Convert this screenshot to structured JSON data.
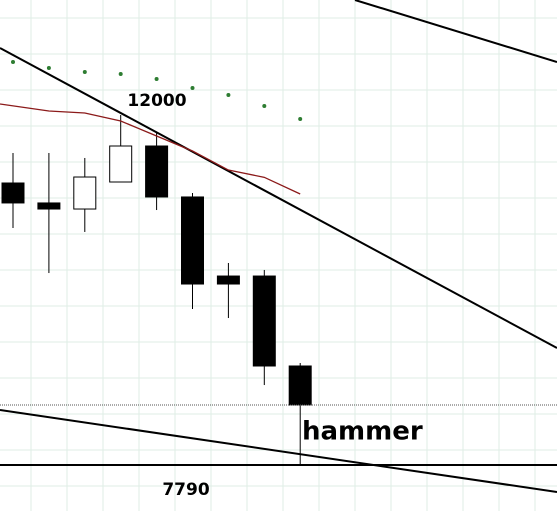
{
  "chart_data": {
    "type": "candlestick",
    "categories": [
      null,
      null,
      null,
      null,
      null,
      null,
      null,
      null,
      null
    ],
    "open": [
      11182,
      10942,
      10869,
      11194,
      11627,
      11014,
      10063,
      10063,
      8981
    ],
    "close": [
      10942,
      10869,
      11254,
      11627,
      11014,
      9967,
      9967,
      8981,
      8512
    ],
    "high": [
      11543,
      11543,
      11483,
      12000,
      11783,
      11062,
      10220,
      10136,
      9017
    ],
    "low": [
      10641,
      10099,
      10593,
      11194,
      10857,
      9666,
      9558,
      8752,
      7790
    ],
    "up_color": "#ffffff",
    "down_color": "#000000",
    "moving_average": {
      "color": "#8b1a1a",
      "values": [
        12132,
        12048,
        12024,
        11928,
        11747,
        11567,
        11338,
        11250,
        11050
      ]
    },
    "dots": {
      "color": "#2e7d32",
      "values": [
        12638,
        12565,
        12517,
        12493,
        12433,
        12325,
        12241,
        12108,
        11952
      ]
    },
    "annotations": [
      12000,
      7790
    ],
    "pattern_label": "hammer",
    "ylim": [
      7237,
      13383
    ],
    "grid": true
  }
}
